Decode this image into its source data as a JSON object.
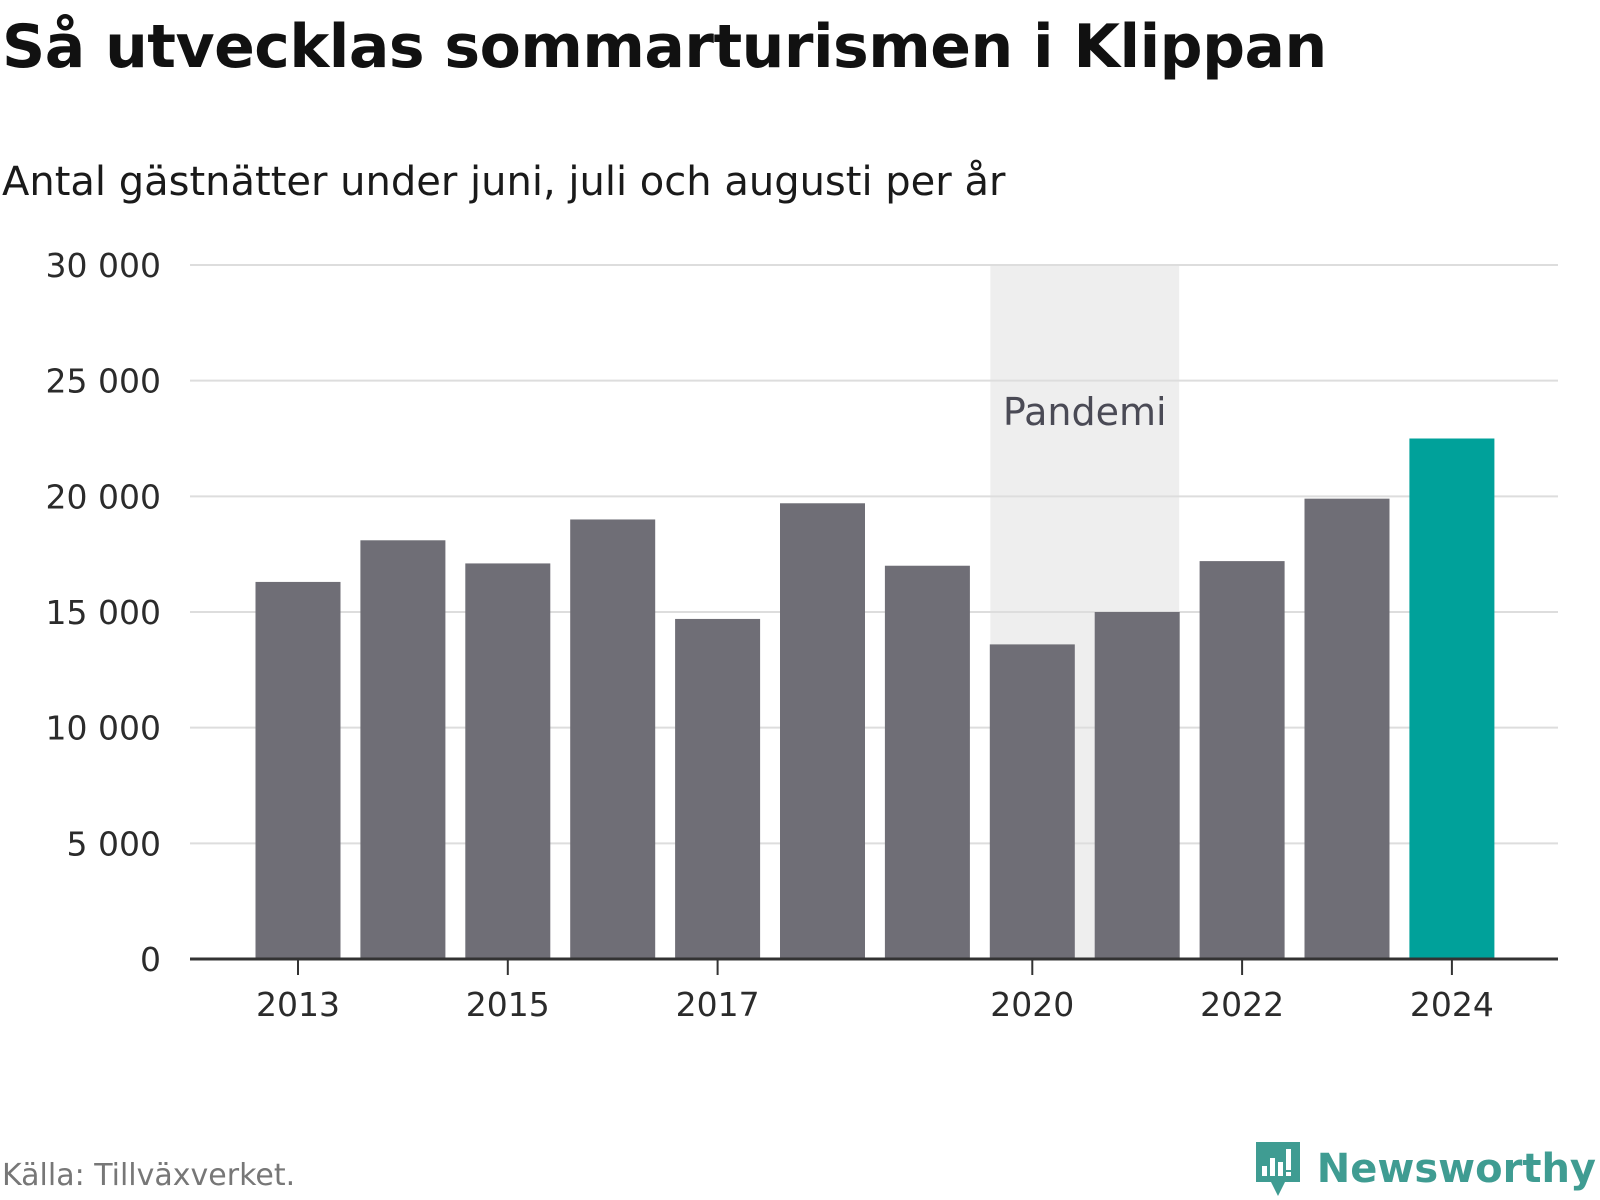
{
  "title": "Så utvecklas sommarturismen i Klippan",
  "subtitle": "Antal gästnätter under juni, juli och augusti per år",
  "source": "Källa: Tillväxverket.",
  "brand": {
    "name": "Newsworthy",
    "icon": "newsworthy-logo-icon",
    "color": "#3f9c92"
  },
  "colors": {
    "bar": "#6f6e76",
    "highlight": "#00a19a",
    "shading": "#eeeeee",
    "grid": "#dddddd",
    "axis": "#333333"
  },
  "chart_data": {
    "type": "bar",
    "x": [
      2013,
      2014,
      2015,
      2016,
      2017,
      2018,
      2019,
      2020,
      2021,
      2022,
      2023,
      2024
    ],
    "values": [
      16300,
      18100,
      17100,
      19000,
      14700,
      19700,
      17000,
      13600,
      15000,
      17200,
      19900,
      22500
    ],
    "highlight": [
      2024
    ],
    "xticks": [
      "2013",
      "2015",
      "2017",
      "2020",
      "2022",
      "2024"
    ],
    "yticks": [
      "0",
      "5 000",
      "10 000",
      "15 000",
      "20 000",
      "25 000",
      "30 000"
    ],
    "ylim": [
      0,
      30000
    ],
    "xlabel": "",
    "ylabel": "",
    "grid": true,
    "legend": "none",
    "annotation": {
      "label": "Pandemi",
      "x_range": [
        2019.6,
        2021.4
      ]
    }
  }
}
